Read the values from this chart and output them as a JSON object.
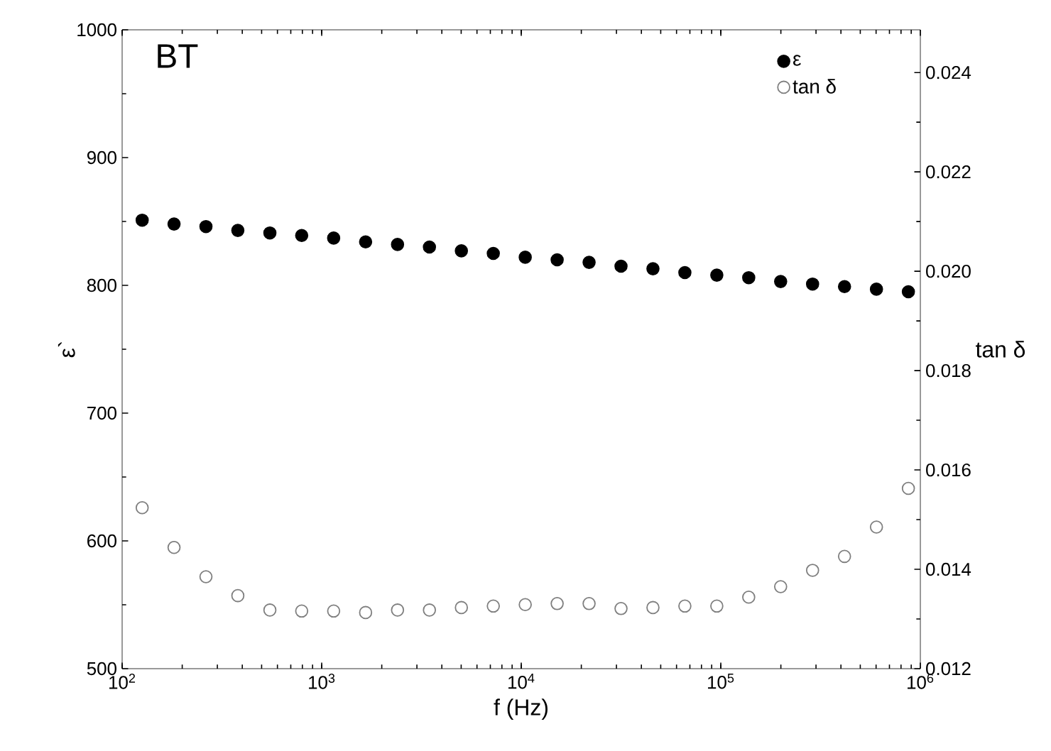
{
  "chart_data": {
    "type": "scatter",
    "annotations": [
      "BT"
    ],
    "xlabel": "f (Hz)",
    "ylabel": "ε`",
    "y2label": "tan δ",
    "log": "x",
    "x": [
      126,
      182,
      263,
      380,
      550,
      794,
      1148,
      1660,
      2399,
      3467,
      5012,
      7244,
      10471,
      15136,
      21878,
      31623,
      45709,
      66069,
      95499,
      138038,
      199526,
      288403,
      416869,
      602560,
      870964
    ],
    "series": [
      {
        "name": "ε",
        "color": "#000000",
        "marker": "circle",
        "values": [
          851,
          848,
          846,
          843,
          841,
          839,
          837,
          834,
          832,
          830,
          827,
          825,
          822,
          820,
          818,
          815,
          813,
          810,
          808,
          806,
          803,
          801,
          799,
          797,
          795
        ]
      },
      {
        "name": "tan δ",
        "color": "#7f7f7f",
        "marker": "open circle",
        "axis": "y2",
        "values": [
          0.01524,
          0.01444,
          0.01385,
          0.01347,
          0.01318,
          0.01316,
          0.01316,
          0.01313,
          0.01318,
          0.01318,
          0.01323,
          0.01326,
          0.01329,
          0.01331,
          0.01331,
          0.01321,
          0.01323,
          0.01326,
          0.01326,
          0.01344,
          0.01365,
          0.01398,
          0.01426,
          0.01485,
          0.01563
        ]
      }
    ],
    "xlim": [
      100,
      1000000
    ],
    "xticks": [
      {
        "value": 100,
        "label": "10$^{2}$"
      },
      {
        "value": 1000,
        "label": "10$^{3}$"
      },
      {
        "value": 10000,
        "label": "10$^{4}$"
      },
      {
        "value": 100000,
        "label": "10$^{5}$"
      },
      {
        "value": 1000000,
        "label": "10$^{6}$"
      }
    ],
    "ylim": [
      500,
      1000
    ],
    "yticks": [
      500,
      600,
      700,
      800,
      900,
      1000
    ],
    "y2lim": [
      0.012,
      0.02486
    ],
    "y2ticks": [
      0.012,
      0.014,
      0.016,
      0.018,
      {
        "value": 0.02,
        "label": "0.020"
      },
      0.022,
      0.024
    ],
    "legend": "top right",
    "grid": false
  }
}
